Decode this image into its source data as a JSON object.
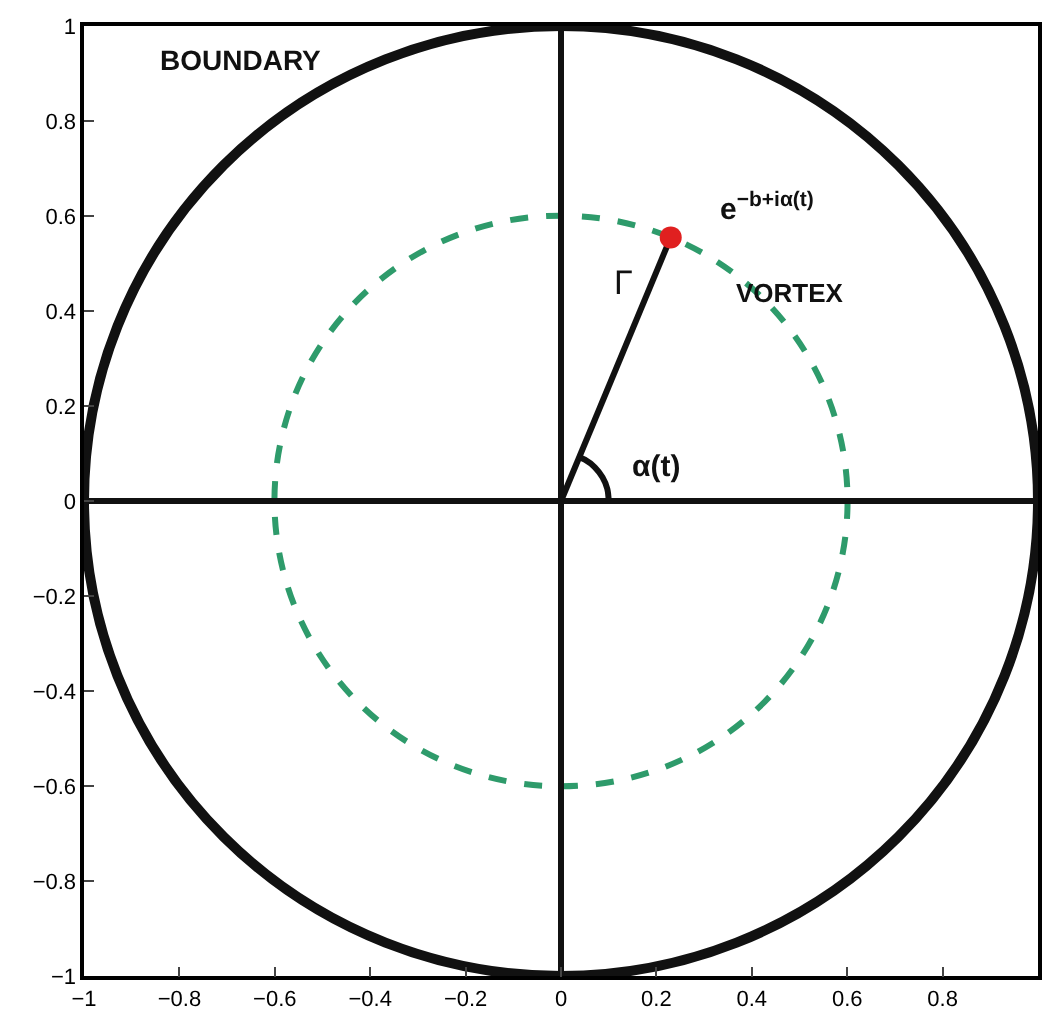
{
  "chart_data": {
    "type": "line",
    "xlim": [
      -1,
      1
    ],
    "ylim": [
      -1,
      1
    ],
    "xticks": [
      -1,
      -0.8,
      -0.6,
      -0.4,
      -0.2,
      0,
      0.2,
      0.4,
      0.6,
      0.8
    ],
    "yticks": [
      -1,
      -0.8,
      -0.6,
      -0.4,
      -0.2,
      0,
      0.2,
      0.4,
      0.6,
      0.8,
      1
    ],
    "grid": false,
    "series": [
      {
        "color": "#111111",
        "line_style": "solid",
        "x": [
          -1,
          1
        ],
        "values": [
          0,
          0
        ]
      },
      {
        "color": "#111111",
        "line_style": "solid",
        "x": [
          0,
          0
        ],
        "values": [
          -1,
          1
        ]
      },
      {
        "color": "#111111",
        "line_style": "solid",
        "x": [
          0,
          0.23
        ],
        "values": [
          0,
          0.555
        ]
      },
      {
        "color": "#111111",
        "line_style": "solid",
        "x": [
          0.038,
          0.05,
          0.071,
          0.087,
          0.097,
          0.1
        ],
        "values": [
          0.092,
          0.087,
          0.071,
          0.05,
          0.026,
          0
        ]
      },
      {
        "type": "scatter",
        "color": "#e02020",
        "marker": "circle",
        "x": [
          0.23
        ],
        "values": [
          0.555
        ]
      }
    ],
    "annotations": [
      "BOUNDARY",
      "e$^{−b+iα(t)}$",
      "VORTEX",
      "Γ",
      "α(t)"
    ]
  }
}
